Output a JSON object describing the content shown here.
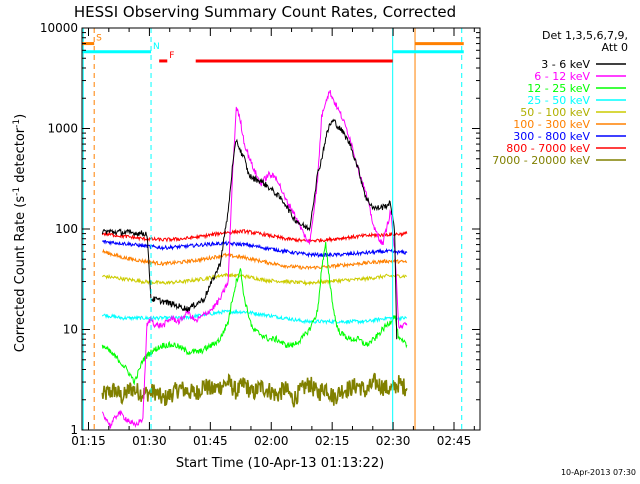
{
  "chart_data": {
    "type": "line",
    "title": "HESSI Observing Summary Count Rates, Corrected",
    "xlabel": "Start Time (10-Apr-13 01:13:22)",
    "ylabel_main": "Corrected Count Rate (s",
    "ylabel_sup1": "-1",
    "ylabel_mid": " detector",
    "ylabel_sup2": "-1",
    "ylabel_end": ")",
    "timestamp": "10-Apr-2013 07:30",
    "x_unit": "minutes after 01:13:22 UT",
    "xlim": [
      0,
      98
    ],
    "ylim": [
      1,
      10000
    ],
    "yscale": "log",
    "x_ticks": [
      {
        "label": "01:15",
        "value": 1.6
      },
      {
        "label": "01:30",
        "value": 16.6
      },
      {
        "label": "01:45",
        "value": 31.6
      },
      {
        "label": "02:00",
        "value": 46.6
      },
      {
        "label": "02:15",
        "value": 61.6
      },
      {
        "label": "02:30",
        "value": 76.6
      },
      {
        "label": "02:45",
        "value": 91.6
      }
    ],
    "y_ticks": [
      {
        "label": "1",
        "value": 1
      },
      {
        "label": "10",
        "value": 10
      },
      {
        "label": "100",
        "value": 100
      },
      {
        "label": "1000",
        "value": 1000
      },
      {
        "label": "10000",
        "value": 10000
      }
    ],
    "legend_title_line1": "Det 1,3,5,6,7,9,",
    "legend_title_line2": "Att 0",
    "legend_position": "right",
    "series": [
      {
        "name": "3 - 6 keV",
        "color": "#000000",
        "x": [
          5,
          16,
          17,
          18,
          22,
          26,
          30,
          32,
          34,
          36,
          37,
          38,
          39,
          40,
          41,
          42,
          44,
          46,
          48,
          50,
          52,
          54,
          56,
          58,
          59,
          60,
          61,
          62,
          63,
          64,
          66,
          68,
          70,
          72,
          74,
          76,
          77,
          77.5
        ],
        "y": [
          95,
          90,
          20,
          20,
          18,
          16,
          20,
          30,
          45,
          150,
          400,
          780,
          600,
          500,
          350,
          320,
          300,
          260,
          220,
          180,
          130,
          110,
          100,
          350,
          500,
          800,
          1100,
          1200,
          1050,
          950,
          700,
          400,
          200,
          160,
          165,
          180,
          90,
          8
        ]
      },
      {
        "name": "6 - 12 keV",
        "color": "#ff00ff",
        "x": [
          5,
          7,
          9,
          13,
          15,
          16,
          17,
          18,
          20,
          22,
          24,
          26,
          28,
          30,
          32,
          34,
          36,
          37,
          38,
          39,
          40,
          42,
          44,
          46,
          48,
          50,
          52,
          54,
          56,
          58,
          59,
          60,
          61,
          62,
          64,
          66,
          68,
          70,
          72,
          74,
          76,
          77,
          78,
          80
        ],
        "y": [
          1.5,
          1.1,
          1.5,
          1.1,
          1.3,
          11,
          13,
          11,
          11,
          13,
          12,
          15,
          12,
          14,
          16,
          20,
          30,
          300,
          1650,
          1200,
          700,
          420,
          280,
          350,
          320,
          200,
          150,
          100,
          70,
          300,
          1300,
          1900,
          2350,
          1900,
          1300,
          800,
          400,
          220,
          100,
          70,
          150,
          60,
          11,
          11
        ]
      },
      {
        "name": "12 - 25 keV",
        "color": "#00ff00",
        "x": [
          5,
          9,
          11,
          13,
          15,
          17,
          20,
          23,
          26,
          29,
          32,
          34,
          36,
          37,
          38,
          39,
          40,
          42,
          44,
          46,
          48,
          50,
          52,
          54,
          56,
          58,
          59,
          60,
          61,
          62,
          63,
          64,
          66,
          68,
          70,
          72,
          74,
          76,
          77,
          78,
          80
        ],
        "y": [
          7,
          5,
          4,
          3,
          5,
          6,
          7,
          7,
          6,
          6,
          7,
          8,
          12,
          20,
          30,
          40,
          20,
          10,
          9,
          8,
          8,
          7,
          7,
          8,
          10,
          15,
          40,
          70,
          30,
          15,
          10,
          9,
          8,
          8,
          7,
          8,
          10,
          12,
          14,
          8,
          7
        ]
      },
      {
        "name": "25 - 50 keV",
        "color": "#00ffff",
        "x": [
          5,
          10,
          15,
          20,
          25,
          30,
          35,
          40,
          45,
          50,
          55,
          60,
          65,
          70,
          75,
          77,
          80
        ],
        "y": [
          14,
          13,
          13,
          13,
          13,
          14,
          15,
          15,
          14,
          13,
          12,
          12,
          12,
          12,
          13,
          13,
          13
        ]
      },
      {
        "name": "50 - 100 keV",
        "color": "#cccc00",
        "x": [
          5,
          10,
          15,
          20,
          25,
          30,
          35,
          40,
          45,
          50,
          55,
          60,
          65,
          70,
          75,
          80
        ],
        "y": [
          34,
          32,
          30,
          29,
          30,
          32,
          35,
          34,
          31,
          30,
          29,
          30,
          31,
          32,
          34,
          34
        ]
      },
      {
        "name": "100 - 300 keV",
        "color": "#ff8000",
        "x": [
          5,
          10,
          15,
          20,
          25,
          30,
          35,
          40,
          45,
          50,
          55,
          60,
          65,
          70,
          75,
          80
        ],
        "y": [
          60,
          52,
          48,
          45,
          47,
          50,
          55,
          52,
          47,
          43,
          41,
          42,
          44,
          46,
          48,
          47
        ]
      },
      {
        "name": "300 - 800 keV",
        "color": "#0000ff",
        "x": [
          5,
          10,
          15,
          20,
          25,
          30,
          35,
          40,
          45,
          50,
          55,
          60,
          65,
          70,
          75,
          80
        ],
        "y": [
          75,
          72,
          68,
          65,
          67,
          70,
          72,
          70,
          65,
          60,
          56,
          55,
          56,
          58,
          60,
          58
        ]
      },
      {
        "name": "800 - 7000 keV",
        "color": "#ff0000",
        "x": [
          5,
          10,
          15,
          20,
          25,
          30,
          35,
          40,
          45,
          50,
          55,
          60,
          65,
          70,
          75,
          80
        ],
        "y": [
          90,
          85,
          80,
          78,
          80,
          85,
          92,
          95,
          88,
          80,
          76,
          78,
          82,
          86,
          88,
          90
        ]
      },
      {
        "name": "7000 - 20000 keV",
        "color": "#808000",
        "x": [
          5,
          8,
          10,
          12,
          15,
          18,
          20,
          24,
          28,
          30,
          32,
          34,
          36,
          38,
          40,
          42,
          44,
          46,
          48,
          50,
          52,
          54,
          56,
          58,
          60,
          62,
          64,
          66,
          68,
          70,
          72,
          74,
          76,
          78,
          80
        ],
        "y": [
          2.2,
          2.5,
          2.1,
          2.6,
          2.3,
          2.4,
          2.0,
          2.6,
          2.3,
          2.8,
          2.5,
          2.7,
          3.0,
          2.4,
          2.9,
          2.3,
          2.7,
          2.5,
          2.2,
          2.6,
          2.0,
          2.5,
          2.9,
          2.3,
          2.7,
          2.1,
          2.5,
          2.6,
          2.8,
          2.4,
          3.0,
          2.7,
          2.5,
          2.9,
          2.6
        ]
      }
    ],
    "flag_bars": [
      {
        "label": "S",
        "color": "#ff8000",
        "x": [
          0,
          3
        ],
        "y": 7000
      },
      {
        "label": "",
        "color": "#ff8000",
        "x": [
          82,
          94
        ],
        "y": 7000
      },
      {
        "label": "N",
        "color": "#00ffff",
        "x": [
          0,
          17
        ],
        "y": 5800
      },
      {
        "label": "",
        "color": "#00ffff",
        "x": [
          76.5,
          94
        ],
        "y": 5800
      },
      {
        "label": "F",
        "color": "#ff0000",
        "x": [
          19,
          21
        ],
        "y": 4700
      },
      {
        "label": "",
        "color": "#ff0000",
        "x": [
          28,
          76.5
        ],
        "y": 4700
      }
    ],
    "vertical_lines": [
      {
        "x": 0.3,
        "color": "#00ffff",
        "style": "solid"
      },
      {
        "x": 3,
        "color": "#ff8000",
        "style": "dashed"
      },
      {
        "x": 17,
        "color": "#00ffff",
        "style": "dashed"
      },
      {
        "x": 76.5,
        "color": "#00ffff",
        "style": "solid"
      },
      {
        "x": 82,
        "color": "#ff8000",
        "style": "solid"
      },
      {
        "x": 93.5,
        "color": "#00ffff",
        "style": "dashed"
      }
    ]
  }
}
